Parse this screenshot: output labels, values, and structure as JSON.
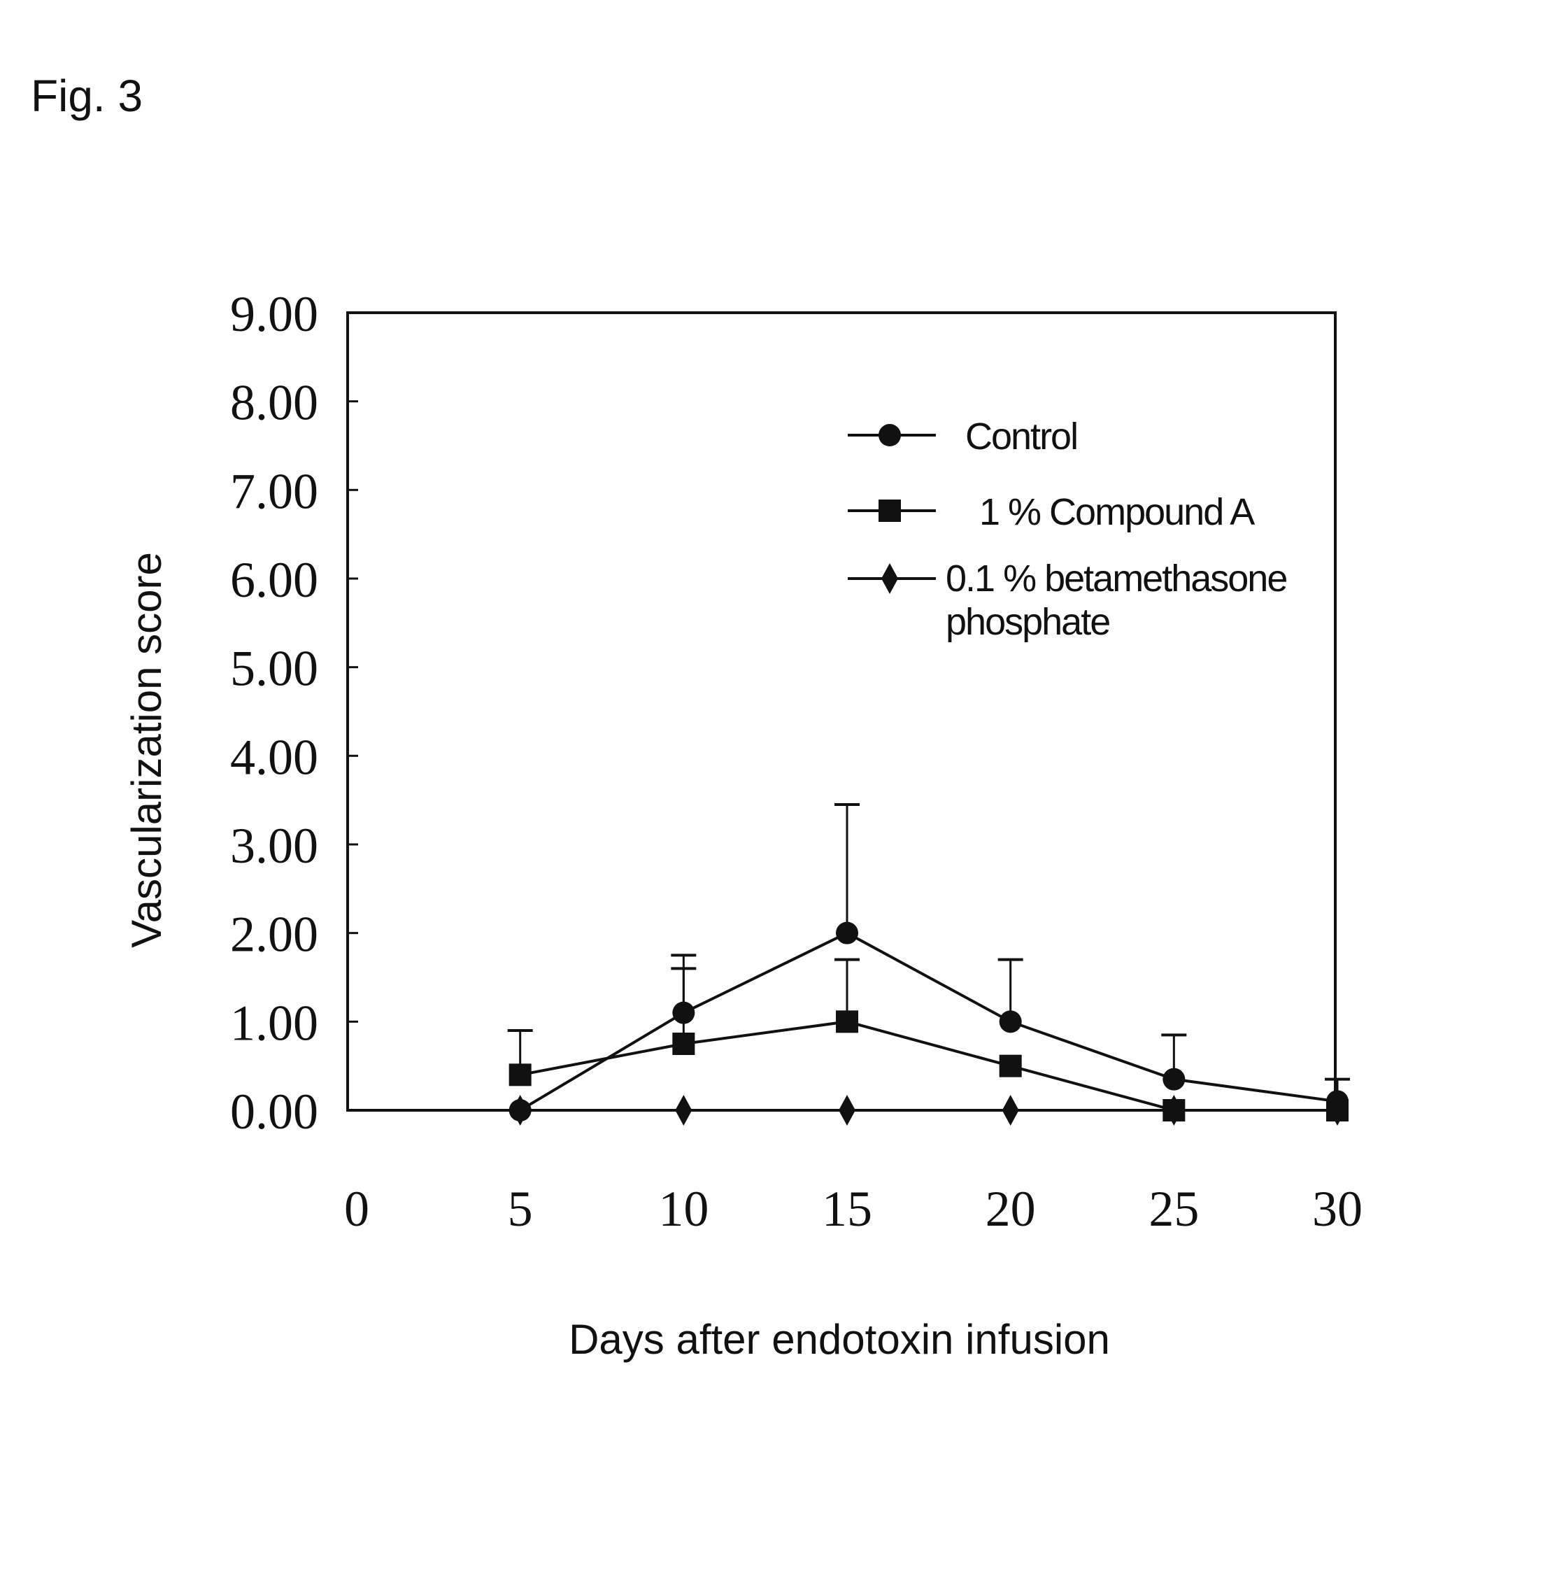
{
  "figure_label": "Fig. 3",
  "chart_data": {
    "type": "line",
    "title": "",
    "xlabel": "Days after endotoxin infusion",
    "ylabel": "Vascularization score",
    "xlim": [
      0,
      30
    ],
    "ylim": [
      0,
      9
    ],
    "x_ticks": [
      "0",
      "5",
      "10",
      "15",
      "20",
      "25",
      "30"
    ],
    "y_ticks": [
      "0.00",
      "1.00",
      "2.00",
      "3.00",
      "4.00",
      "5.00",
      "6.00",
      "7.00",
      "8.00",
      "9.00"
    ],
    "grid": false,
    "legend": {
      "placement": "top-right",
      "entries": [
        "Control",
        "1 % Compound A",
        "0.1 % betamethasone phosphate"
      ]
    },
    "series": [
      {
        "name": "Control",
        "marker": "circle",
        "x": [
          5,
          10,
          15,
          20,
          25,
          30
        ],
        "y": [
          0.0,
          1.1,
          2.0,
          1.0,
          0.35,
          0.1
        ],
        "error_upper": [
          null,
          1.6,
          3.45,
          1.7,
          0.85,
          0.35
        ]
      },
      {
        "name": "1 % Compound A",
        "marker": "square",
        "x": [
          5,
          10,
          15,
          20,
          25,
          30
        ],
        "y": [
          0.4,
          0.75,
          1.0,
          0.5,
          0.0,
          0.0
        ],
        "error_upper": [
          0.9,
          1.75,
          1.7,
          null,
          null,
          null
        ]
      },
      {
        "name": "0.1 % betamethasone phosphate",
        "marker": "diamond",
        "x": [
          5,
          10,
          15,
          20,
          25,
          30
        ],
        "y": [
          0.0,
          0.0,
          0.0,
          0.0,
          0.0,
          0.0
        ],
        "error_upper": [
          null,
          null,
          null,
          null,
          null,
          null
        ]
      }
    ]
  },
  "colors": {
    "ink": "#111111",
    "background": "#ffffff"
  }
}
